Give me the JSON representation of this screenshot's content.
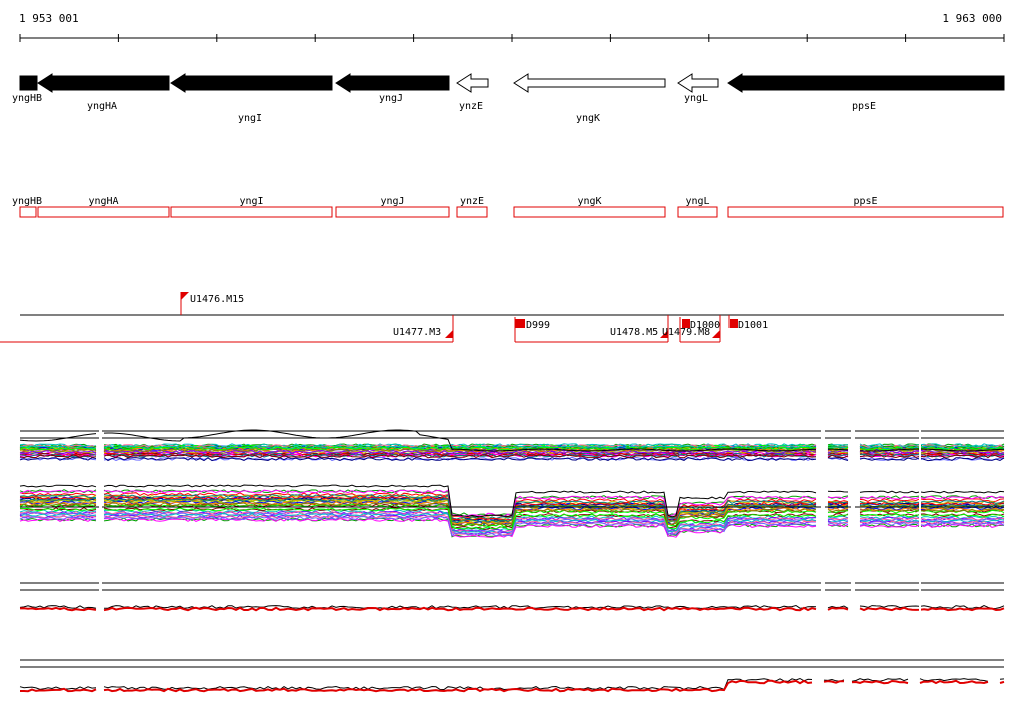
{
  "ruler": {
    "start_label": "1 953 001",
    "end_label": "1 963 000"
  },
  "colors": {
    "feature_red": "#e00000",
    "black": "#000000"
  },
  "genes_top": [
    {
      "name": "yngHB",
      "strand": "-",
      "filled": true
    },
    {
      "name": "yngHA",
      "strand": "-",
      "filled": true
    },
    {
      "name": "yngI",
      "strand": "-",
      "filled": true
    },
    {
      "name": "yngJ",
      "strand": "-",
      "filled": true
    },
    {
      "name": "ynzE",
      "strand": "-",
      "filled": false
    },
    {
      "name": "yngK",
      "strand": "-",
      "filled": false
    },
    {
      "name": "yngL",
      "strand": "-",
      "filled": false
    },
    {
      "name": "ppsE",
      "strand": "-",
      "filled": true
    }
  ],
  "genes_boxes": [
    "yngHB",
    "yngHA",
    "yngI",
    "yngJ",
    "ynzE",
    "yngK",
    "yngL",
    "ppsE"
  ],
  "features": [
    "U1476.M15",
    "U1477.M3",
    "D999",
    "U1478.M5",
    "U1479.M8",
    "D1000",
    "D1001"
  ]
}
